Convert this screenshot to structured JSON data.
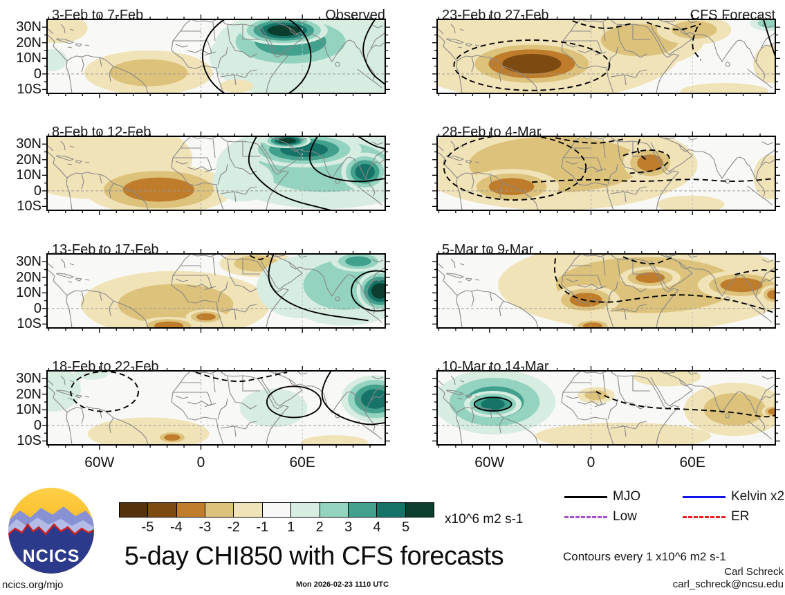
{
  "chart_data": {
    "type": "heatmap",
    "subtype": "lat-lon anomaly map panels",
    "variable": "5-day CHI850 velocity potential anomaly",
    "units_label": "x10^6 m2 s-1",
    "lat_ticks": [
      "30N",
      "20N",
      "10N",
      "0",
      "10S"
    ],
    "lon_ticks": [
      "60W",
      "0",
      "60E"
    ],
    "colorbar": {
      "tick_labels": [
        "-5",
        "-4",
        "-3",
        "-2",
        "-1",
        "1",
        "2",
        "3",
        "4",
        "5"
      ],
      "colors": [
        "#54320b",
        "#7d4a12",
        "#bf7d2c",
        "#ddc27c",
        "#f1e3b8",
        "#f8f8f6",
        "#d7ede2",
        "#93d3bf",
        "#41a18d",
        "#157368",
        "#0b3e2f"
      ]
    },
    "panels": [
      {
        "title": "3-Feb to 7-Feb",
        "tag": "Observed",
        "column": "left",
        "row": 0,
        "blobs": [
          [
            0.8,
            0.5,
            0.32,
            0.6,
            1
          ],
          [
            0.72,
            0.3,
            0.22,
            0.4,
            3
          ],
          [
            0.7,
            0.15,
            0.13,
            0.2,
            5
          ],
          [
            0.03,
            0.12,
            0.09,
            0.2,
            -1
          ],
          [
            0.3,
            0.72,
            0.19,
            0.3,
            -2
          ],
          [
            0.01,
            0.55,
            0.05,
            0.15,
            1
          ],
          [
            0.56,
            0.9,
            0.05,
            0.09,
            -1
          ]
        ],
        "contours": [
          {
            "e": [
              0.62,
              0.5,
              0.16,
              0.62
            ],
            "dash": false
          },
          {
            "p": [
              [
                0.97,
                0.0
              ],
              [
                0.925,
                0.3
              ],
              [
                0.95,
                0.7
              ],
              [
                1.0,
                0.88
              ]
            ],
            "dash": false
          }
        ]
      },
      {
        "title": "8-Feb to 12-Feb",
        "tag": "",
        "column": "left",
        "row": 1,
        "blobs": [
          [
            0.15,
            0.3,
            0.28,
            0.55,
            -1
          ],
          [
            0.33,
            0.72,
            0.22,
            0.34,
            -3
          ],
          [
            0.82,
            0.4,
            0.32,
            0.58,
            2
          ],
          [
            0.76,
            0.18,
            0.17,
            0.24,
            4
          ],
          [
            0.71,
            0.06,
            0.07,
            0.1,
            5
          ],
          [
            0.94,
            0.48,
            0.07,
            0.26,
            4
          ],
          [
            0.58,
            0.6,
            0.09,
            0.28,
            1
          ]
        ],
        "contours": [
          {
            "p": [
              [
                0.62,
                0.0
              ],
              [
                0.585,
                0.28
              ],
              [
                0.62,
                0.58
              ],
              [
                0.7,
                0.84
              ],
              [
                0.84,
                1.0
              ]
            ],
            "dash": false
          },
          {
            "p": [
              [
                0.8,
                0.0
              ],
              [
                0.765,
                0.25
              ],
              [
                0.8,
                0.52
              ],
              [
                0.91,
                0.63
              ],
              [
                1.0,
                0.57
              ]
            ],
            "dash": false
          },
          {
            "p": [
              [
                0.92,
                0.0
              ],
              [
                0.96,
                0.12
              ],
              [
                1.0,
                0.17
              ]
            ],
            "dash": false
          }
        ]
      },
      {
        "title": "13-Feb to 17-Feb",
        "tag": "",
        "column": "left",
        "row": 2,
        "blobs": [
          [
            0.38,
            0.68,
            0.28,
            0.45,
            -2
          ],
          [
            0.36,
            0.97,
            0.09,
            0.12,
            -3
          ],
          [
            0.47,
            0.85,
            0.06,
            0.1,
            -3
          ],
          [
            0.62,
            0.13,
            0.11,
            0.18,
            -2
          ],
          [
            0.75,
            0.45,
            0.13,
            0.42,
            1
          ],
          [
            0.88,
            0.42,
            0.2,
            0.55,
            2
          ],
          [
            0.92,
            0.1,
            0.08,
            0.14,
            3
          ],
          [
            0.985,
            0.5,
            0.07,
            0.28,
            5
          ]
        ],
        "contours": [
          {
            "p": [
              [
                0.67,
                0.0
              ],
              [
                0.645,
                0.28
              ],
              [
                0.68,
                0.58
              ],
              [
                0.78,
                0.8
              ],
              [
                0.95,
                0.9
              ]
            ],
            "dash": false
          },
          {
            "e": [
              0.975,
              0.5,
              0.075,
              0.27
            ],
            "dash": false
          },
          {
            "p": [
              [
                0.6,
                0.02
              ],
              [
                0.625,
                0.1
              ],
              [
                0.655,
                0.02
              ]
            ],
            "dash": true
          }
        ]
      },
      {
        "title": "18-Feb to 22-Feb",
        "tag": "",
        "column": "left",
        "row": 3,
        "blobs": [
          [
            0.02,
            0.25,
            0.08,
            0.3,
            1
          ],
          [
            0.13,
            0.04,
            0.05,
            0.08,
            1
          ],
          [
            0.3,
            0.85,
            0.18,
            0.22,
            -1
          ],
          [
            0.37,
            0.9,
            0.05,
            0.09,
            -3
          ],
          [
            0.67,
            0.5,
            0.1,
            0.26,
            1
          ],
          [
            0.97,
            0.38,
            0.1,
            0.32,
            4
          ],
          [
            0.85,
            0.97,
            0.1,
            0.1,
            -1
          ]
        ],
        "contours": [
          {
            "e": [
              0.17,
              0.28,
              0.1,
              0.27
            ],
            "dash": true
          },
          {
            "p": [
              [
                0.44,
                0.02
              ],
              [
                0.54,
                0.18
              ],
              [
                0.65,
                0.08
              ],
              [
                0.71,
                0.02
              ]
            ],
            "dash": true
          },
          {
            "e": [
              0.73,
              0.42,
              0.08,
              0.21
            ],
            "dash": false
          },
          {
            "p": [
              [
                0.84,
                0.0
              ],
              [
                0.8,
                0.28
              ],
              [
                0.84,
                0.58
              ],
              [
                0.94,
                0.74
              ],
              [
                1.0,
                0.7
              ]
            ],
            "dash": false
          }
        ]
      },
      {
        "title": "23-Feb to 27-Feb",
        "tag": "CFS Forecast",
        "column": "right",
        "row": 0,
        "blobs": [
          [
            0.3,
            0.42,
            0.42,
            0.68,
            -1
          ],
          [
            0.28,
            0.6,
            0.21,
            0.32,
            -4
          ],
          [
            0.6,
            0.28,
            0.19,
            0.36,
            -2
          ],
          [
            0.76,
            0.14,
            0.11,
            0.2,
            -2
          ],
          [
            0.985,
            0.05,
            0.06,
            0.11,
            2
          ],
          [
            0.985,
            0.6,
            0.05,
            0.26,
            -1
          ],
          [
            0.85,
            0.97,
            0.13,
            0.11,
            -1
          ]
        ],
        "contours": [
          {
            "e": [
              0.28,
              0.62,
              0.23,
              0.34
            ],
            "dash": true
          },
          {
            "p": [
              [
                0.4,
                0.02
              ],
              [
                0.48,
                0.16
              ],
              [
                0.58,
                0.05
              ]
            ],
            "dash": true
          },
          {
            "p": [
              [
                0.62,
                0.04
              ],
              [
                0.7,
                0.18
              ],
              [
                0.78,
                0.06
              ]
            ],
            "dash": true
          },
          {
            "p": [
              [
                0.77,
                0.1
              ],
              [
                0.745,
                0.35
              ],
              [
                0.78,
                0.55
              ]
            ],
            "dash": true
          },
          {
            "p": [
              [
                0.965,
                0.0
              ],
              [
                0.985,
                0.3
              ],
              [
                1.0,
                0.5
              ]
            ],
            "dash": false
          }
        ]
      },
      {
        "title": "28-Feb to 4-Mar",
        "tag": "",
        "column": "right",
        "row": 1,
        "blobs": [
          [
            0.35,
            0.38,
            0.42,
            0.62,
            -2
          ],
          [
            0.22,
            0.68,
            0.14,
            0.24,
            -3
          ],
          [
            0.63,
            0.36,
            0.08,
            0.24,
            -3
          ],
          [
            0.985,
            0.55,
            0.05,
            0.3,
            -1
          ],
          [
            0.75,
            0.92,
            0.1,
            0.12,
            -1
          ]
        ],
        "contours": [
          {
            "e": [
              0.23,
              0.42,
              0.21,
              0.44
            ],
            "dash": true
          },
          {
            "p": [
              [
                0.35,
                0.02
              ],
              [
                0.45,
                0.12
              ],
              [
                0.55,
                0.04
              ]
            ],
            "dash": true
          },
          {
            "p": [
              [
                0.55,
                0.26
              ],
              [
                0.62,
                0.15
              ],
              [
                0.7,
                0.26
              ],
              [
                0.66,
                0.46
              ],
              [
                0.57,
                0.5
              ]
            ],
            "dash": true
          },
          {
            "p": [
              [
                0.28,
                0.62
              ],
              [
                0.45,
                0.57
              ],
              [
                0.6,
                0.62
              ],
              [
                0.75,
                0.57
              ],
              [
                0.88,
                0.62
              ],
              [
                1.0,
                0.57
              ]
            ],
            "dash": true
          },
          {
            "p": [
              [
                0.6,
                0.04
              ],
              [
                0.585,
                0.18
              ],
              [
                0.62,
                0.33
              ]
            ],
            "dash": true
          }
        ]
      },
      {
        "title": "5-Mar to 9-Mar",
        "tag": "",
        "column": "right",
        "row": 2,
        "blobs": [
          [
            0.62,
            0.42,
            0.44,
            0.62,
            -2
          ],
          [
            0.44,
            0.62,
            0.1,
            0.2,
            -3
          ],
          [
            0.63,
            0.32,
            0.09,
            0.15,
            -3
          ],
          [
            0.9,
            0.42,
            0.13,
            0.2,
            -3
          ],
          [
            0.46,
            0.97,
            0.06,
            0.09,
            -3
          ],
          [
            0.995,
            0.55,
            0.04,
            0.13,
            -3
          ]
        ],
        "contours": [
          {
            "p": [
              [
                0.35,
                0.06
              ],
              [
                0.34,
                0.34
              ],
              [
                0.4,
                0.6
              ],
              [
                0.5,
                0.67
              ],
              [
                0.61,
                0.59
              ],
              [
                0.72,
                0.54
              ],
              [
                0.85,
                0.6
              ],
              [
                0.95,
                0.72
              ],
              [
                1.0,
                0.8
              ]
            ],
            "dash": true
          },
          {
            "p": [
              [
                0.55,
                0.04
              ],
              [
                0.62,
                0.18
              ],
              [
                0.7,
                0.04
              ]
            ],
            "dash": true
          },
          {
            "p": [
              [
                0.88,
                0.28
              ],
              [
                0.95,
                0.2
              ],
              [
                1.0,
                0.24
              ]
            ],
            "dash": true
          }
        ]
      },
      {
        "title": "10-Mar to 14-Mar",
        "tag": "",
        "column": "right",
        "row": 3,
        "blobs": [
          [
            0.17,
            0.42,
            0.18,
            0.44,
            3
          ],
          [
            0.165,
            0.45,
            0.085,
            0.18,
            4
          ],
          [
            0.55,
            0.88,
            0.26,
            0.18,
            -1
          ],
          [
            0.47,
            0.33,
            0.055,
            0.11,
            -2
          ],
          [
            0.88,
            0.52,
            0.15,
            0.36,
            -2
          ],
          [
            0.995,
            0.55,
            0.035,
            0.09,
            -3
          ],
          [
            0.68,
            0.08,
            0.1,
            0.13,
            -1
          ]
        ],
        "contours": [
          {
            "e": [
              0.165,
              0.45,
              0.055,
              0.09
            ],
            "dash": false
          },
          {
            "p": [
              [
                0.47,
                0.28
              ],
              [
                0.52,
                0.4
              ],
              [
                0.62,
                0.5
              ],
              [
                0.75,
                0.52
              ],
              [
                0.88,
                0.56
              ],
              [
                0.97,
                0.63
              ],
              [
                1.0,
                0.6
              ]
            ],
            "dash": true
          }
        ]
      }
    ]
  },
  "legend": {
    "items": [
      {
        "label": "MJO",
        "color": "#000000",
        "dash": false
      },
      {
        "label": "Kelvin x2",
        "color": "#1414e8",
        "dash": false
      },
      {
        "label": "Low",
        "color": "#a44fd0",
        "dash": true
      },
      {
        "label": "ER",
        "color": "#ee2020",
        "dash": true
      }
    ]
  },
  "footer": {
    "title": "5-day CHI850 with CFS forecasts",
    "timestamp": "Mon 2026-02-23 1110 UTC",
    "site": "ncics.org/mjo",
    "contours_note": "Contours every 1 x10^6 m2 s-1",
    "author": "Carl Schreck",
    "email": "carl_schreck@ncsu.edu",
    "logo_text": "NCICS",
    "units_label": "x10^6 m2 s-1"
  }
}
